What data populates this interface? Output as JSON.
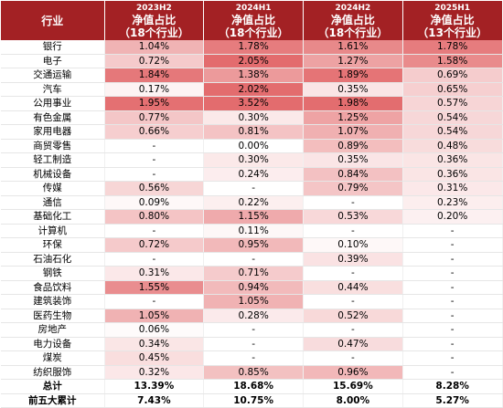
{
  "header": {
    "corner": "行业",
    "metric_label": "净值占比",
    "columns": [
      {
        "period": "2023H2",
        "count": "（18个行业）"
      },
      {
        "period": "2024H1",
        "count": "（18个行业）"
      },
      {
        "period": "2024H2",
        "count": "（18个行业）"
      },
      {
        "period": "2025H1",
        "count": "（13个行业）"
      }
    ]
  },
  "rows": [
    {
      "name": "银行",
      "values": [
        "1.04%",
        "1.78%",
        "1.61%",
        "1.78%"
      ],
      "levels": [
        1.04,
        1.78,
        1.61,
        1.78
      ]
    },
    {
      "name": "电子",
      "values": [
        "0.72%",
        "2.05%",
        "1.27%",
        "1.58%"
      ],
      "levels": [
        0.72,
        2.05,
        1.27,
        1.58
      ]
    },
    {
      "name": "交通运输",
      "values": [
        "1.84%",
        "1.38%",
        "1.89%",
        "0.69%"
      ],
      "levels": [
        1.84,
        1.38,
        1.89,
        0.69
      ]
    },
    {
      "name": "汽车",
      "values": [
        "0.17%",
        "2.02%",
        "0.35%",
        "0.65%"
      ],
      "levels": [
        0.17,
        2.02,
        0.35,
        0.65
      ]
    },
    {
      "name": "公用事业",
      "values": [
        "1.95%",
        "3.52%",
        "1.98%",
        "0.57%"
      ],
      "levels": [
        1.95,
        3.52,
        1.98,
        0.57
      ]
    },
    {
      "name": "有色金属",
      "values": [
        "0.77%",
        "0.30%",
        "1.25%",
        "0.54%"
      ],
      "levels": [
        0.77,
        0.3,
        1.25,
        0.54
      ]
    },
    {
      "name": "家用电器",
      "values": [
        "0.66%",
        "0.81%",
        "1.07%",
        "0.54%"
      ],
      "levels": [
        0.66,
        0.81,
        1.07,
        0.54
      ]
    },
    {
      "name": "商贸零售",
      "values": [
        "-",
        "0.00%",
        "0.89%",
        "0.48%"
      ],
      "levels": [
        null,
        0.0,
        0.89,
        0.48
      ]
    },
    {
      "name": "轻工制造",
      "values": [
        "-",
        "0.30%",
        "0.35%",
        "0.36%"
      ],
      "levels": [
        null,
        0.3,
        0.35,
        0.36
      ]
    },
    {
      "name": "机械设备",
      "values": [
        "-",
        "0.24%",
        "0.84%",
        "0.36%"
      ],
      "levels": [
        null,
        0.24,
        0.84,
        0.36
      ]
    },
    {
      "name": "传媒",
      "values": [
        "0.56%",
        "-",
        "0.79%",
        "0.31%"
      ],
      "levels": [
        0.56,
        null,
        0.79,
        0.31
      ]
    },
    {
      "name": "通信",
      "values": [
        "0.09%",
        "0.22%",
        "-",
        "0.23%"
      ],
      "levels": [
        0.09,
        0.22,
        null,
        0.23
      ]
    },
    {
      "name": "基础化工",
      "values": [
        "0.80%",
        "1.15%",
        "0.53%",
        "0.20%"
      ],
      "levels": [
        0.8,
        1.15,
        0.53,
        0.2
      ]
    },
    {
      "name": "计算机",
      "values": [
        "-",
        "0.11%",
        "-",
        "-"
      ],
      "levels": [
        null,
        0.11,
        null,
        null
      ]
    },
    {
      "name": "环保",
      "values": [
        "0.72%",
        "0.95%",
        "0.10%",
        "-"
      ],
      "levels": [
        0.72,
        0.95,
        0.1,
        null
      ]
    },
    {
      "name": "石油石化",
      "values": [
        "-",
        "-",
        "0.39%",
        "-"
      ],
      "levels": [
        null,
        null,
        0.39,
        null
      ]
    },
    {
      "name": "钢铁",
      "values": [
        "0.31%",
        "0.71%",
        "-",
        "-"
      ],
      "levels": [
        0.31,
        0.71,
        null,
        null
      ]
    },
    {
      "name": "食品饮料",
      "values": [
        "1.55%",
        "0.94%",
        "0.44%",
        "-"
      ],
      "levels": [
        1.55,
        0.94,
        0.44,
        null
      ]
    },
    {
      "name": "建筑装饰",
      "values": [
        "-",
        "1.05%",
        "-",
        "-"
      ],
      "levels": [
        null,
        1.05,
        null,
        null
      ]
    },
    {
      "name": "医药生物",
      "values": [
        "1.05%",
        "0.28%",
        "0.52%",
        "-"
      ],
      "levels": [
        1.05,
        0.28,
        0.52,
        null
      ]
    },
    {
      "name": "房地产",
      "values": [
        "0.06%",
        "-",
        "-",
        "-"
      ],
      "levels": [
        0.06,
        null,
        null,
        null
      ]
    },
    {
      "name": "电力设备",
      "values": [
        "0.34%",
        "-",
        "0.47%",
        "-"
      ],
      "levels": [
        0.34,
        null,
        0.47,
        null
      ]
    },
    {
      "name": "煤炭",
      "values": [
        "0.45%",
        "-",
        "-",
        "-"
      ],
      "levels": [
        0.45,
        null,
        null,
        null
      ]
    },
    {
      "name": "纺织服饰",
      "values": [
        "0.32%",
        "0.85%",
        "0.96%",
        "-"
      ],
      "levels": [
        0.32,
        0.85,
        0.96,
        null
      ]
    }
  ],
  "totals": [
    {
      "name": "总计",
      "values": [
        "13.39%",
        "18.68%",
        "15.69%",
        "8.28%"
      ]
    },
    {
      "name": "前五大累计",
      "values": [
        "7.43%",
        "10.75%",
        "8.00%",
        "5.27%"
      ]
    }
  ],
  "colors": {
    "header_bg": "#a32124",
    "header_text": "#ffffff",
    "heat_low": "#ffffff",
    "heat_high": "#e36c6e"
  },
  "heat_scale_max": 2.0
}
